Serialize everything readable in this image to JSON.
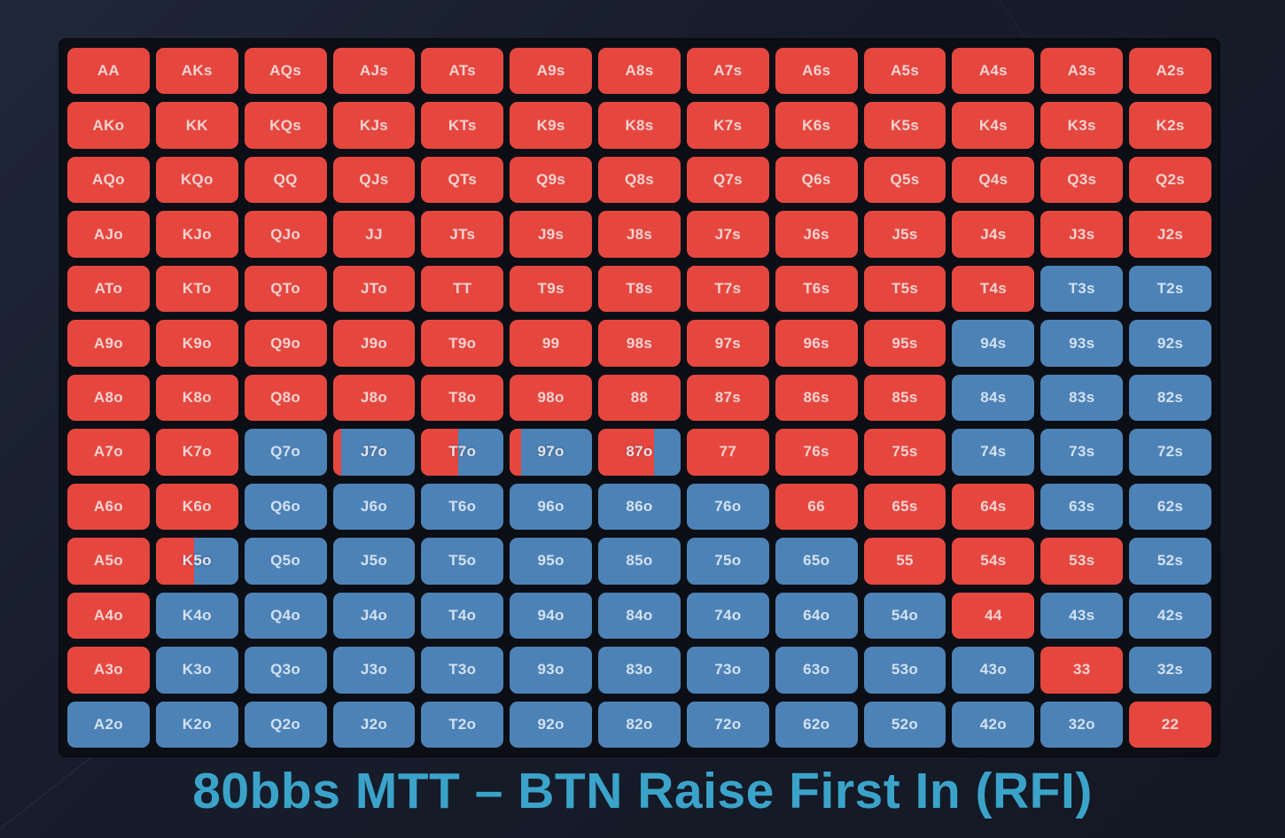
{
  "page": {
    "background": "#161c2a",
    "board_background": "#0b0e15",
    "title_color": "#3ba3c9"
  },
  "chart_data": {
    "type": "heatmap",
    "title": "80bbs MTT – BTN Raise First In (RFI)",
    "description_of_values": "13x13 poker starting-hand matrix; each cell is [hand, red_percent] where red_percent is the portion of the cell filled red from the left (100 = fully red, 0 = fully blue)",
    "cell_format": [
      "hand",
      "red_percent"
    ],
    "cell_colors": {
      "red": "#e5473f",
      "blue": "#4d82b6"
    },
    "legend_position": "none",
    "grid": [
      [
        [
          "AA",
          100
        ],
        [
          "AKs",
          100
        ],
        [
          "AQs",
          100
        ],
        [
          "AJs",
          100
        ],
        [
          "ATs",
          100
        ],
        [
          "A9s",
          100
        ],
        [
          "A8s",
          100
        ],
        [
          "A7s",
          100
        ],
        [
          "A6s",
          100
        ],
        [
          "A5s",
          100
        ],
        [
          "A4s",
          100
        ],
        [
          "A3s",
          100
        ],
        [
          "A2s",
          100
        ]
      ],
      [
        [
          "AKo",
          100
        ],
        [
          "KK",
          100
        ],
        [
          "KQs",
          100
        ],
        [
          "KJs",
          100
        ],
        [
          "KTs",
          100
        ],
        [
          "K9s",
          100
        ],
        [
          "K8s",
          100
        ],
        [
          "K7s",
          100
        ],
        [
          "K6s",
          100
        ],
        [
          "K5s",
          100
        ],
        [
          "K4s",
          100
        ],
        [
          "K3s",
          100
        ],
        [
          "K2s",
          100
        ]
      ],
      [
        [
          "AQo",
          100
        ],
        [
          "KQo",
          100
        ],
        [
          "QQ",
          100
        ],
        [
          "QJs",
          100
        ],
        [
          "QTs",
          100
        ],
        [
          "Q9s",
          100
        ],
        [
          "Q8s",
          100
        ],
        [
          "Q7s",
          100
        ],
        [
          "Q6s",
          100
        ],
        [
          "Q5s",
          100
        ],
        [
          "Q4s",
          100
        ],
        [
          "Q3s",
          100
        ],
        [
          "Q2s",
          100
        ]
      ],
      [
        [
          "AJo",
          100
        ],
        [
          "KJo",
          100
        ],
        [
          "QJo",
          100
        ],
        [
          "JJ",
          100
        ],
        [
          "JTs",
          100
        ],
        [
          "J9s",
          100
        ],
        [
          "J8s",
          100
        ],
        [
          "J7s",
          100
        ],
        [
          "J6s",
          100
        ],
        [
          "J5s",
          100
        ],
        [
          "J4s",
          100
        ],
        [
          "J3s",
          100
        ],
        [
          "J2s",
          100
        ]
      ],
      [
        [
          "ATo",
          100
        ],
        [
          "KTo",
          100
        ],
        [
          "QTo",
          100
        ],
        [
          "JTo",
          100
        ],
        [
          "TT",
          100
        ],
        [
          "T9s",
          100
        ],
        [
          "T8s",
          100
        ],
        [
          "T7s",
          100
        ],
        [
          "T6s",
          100
        ],
        [
          "T5s",
          100
        ],
        [
          "T4s",
          100
        ],
        [
          "T3s",
          0
        ],
        [
          "T2s",
          0
        ]
      ],
      [
        [
          "A9o",
          100
        ],
        [
          "K9o",
          100
        ],
        [
          "Q9o",
          100
        ],
        [
          "J9o",
          100
        ],
        [
          "T9o",
          100
        ],
        [
          "99",
          100
        ],
        [
          "98s",
          100
        ],
        [
          "97s",
          100
        ],
        [
          "96s",
          100
        ],
        [
          "95s",
          100
        ],
        [
          "94s",
          0
        ],
        [
          "93s",
          0
        ],
        [
          "92s",
          0
        ]
      ],
      [
        [
          "A8o",
          100
        ],
        [
          "K8o",
          100
        ],
        [
          "Q8o",
          100
        ],
        [
          "J8o",
          100
        ],
        [
          "T8o",
          100
        ],
        [
          "98o",
          100
        ],
        [
          "88",
          100
        ],
        [
          "87s",
          100
        ],
        [
          "86s",
          100
        ],
        [
          "85s",
          100
        ],
        [
          "84s",
          0
        ],
        [
          "83s",
          0
        ],
        [
          "82s",
          0
        ]
      ],
      [
        [
          "A7o",
          100
        ],
        [
          "K7o",
          100
        ],
        [
          "Q7o",
          0
        ],
        [
          "J7o",
          10
        ],
        [
          "T7o",
          45
        ],
        [
          "97o",
          14
        ],
        [
          "87o",
          68
        ],
        [
          "77",
          100
        ],
        [
          "76s",
          100
        ],
        [
          "75s",
          100
        ],
        [
          "74s",
          0
        ],
        [
          "73s",
          0
        ],
        [
          "72s",
          0
        ]
      ],
      [
        [
          "A6o",
          100
        ],
        [
          "K6o",
          100
        ],
        [
          "Q6o",
          0
        ],
        [
          "J6o",
          0
        ],
        [
          "T6o",
          0
        ],
        [
          "96o",
          0
        ],
        [
          "86o",
          0
        ],
        [
          "76o",
          0
        ],
        [
          "66",
          100
        ],
        [
          "65s",
          100
        ],
        [
          "64s",
          100
        ],
        [
          "63s",
          0
        ],
        [
          "62s",
          0
        ]
      ],
      [
        [
          "A5o",
          100
        ],
        [
          "K5o",
          46
        ],
        [
          "Q5o",
          0
        ],
        [
          "J5o",
          0
        ],
        [
          "T5o",
          0
        ],
        [
          "95o",
          0
        ],
        [
          "85o",
          0
        ],
        [
          "75o",
          0
        ],
        [
          "65o",
          0
        ],
        [
          "55",
          100
        ],
        [
          "54s",
          100
        ],
        [
          "53s",
          100
        ],
        [
          "52s",
          0
        ]
      ],
      [
        [
          "A4o",
          100
        ],
        [
          "K4o",
          0
        ],
        [
          "Q4o",
          0
        ],
        [
          "J4o",
          0
        ],
        [
          "T4o",
          0
        ],
        [
          "94o",
          0
        ],
        [
          "84o",
          0
        ],
        [
          "74o",
          0
        ],
        [
          "64o",
          0
        ],
        [
          "54o",
          0
        ],
        [
          "44",
          100
        ],
        [
          "43s",
          0
        ],
        [
          "42s",
          0
        ]
      ],
      [
        [
          "A3o",
          100
        ],
        [
          "K3o",
          0
        ],
        [
          "Q3o",
          0
        ],
        [
          "J3o",
          0
        ],
        [
          "T3o",
          0
        ],
        [
          "93o",
          0
        ],
        [
          "83o",
          0
        ],
        [
          "73o",
          0
        ],
        [
          "63o",
          0
        ],
        [
          "53o",
          0
        ],
        [
          "43o",
          0
        ],
        [
          "33",
          100
        ],
        [
          "32s",
          0
        ]
      ],
      [
        [
          "A2o",
          0
        ],
        [
          "K2o",
          0
        ],
        [
          "Q2o",
          0
        ],
        [
          "J2o",
          0
        ],
        [
          "T2o",
          0
        ],
        [
          "92o",
          0
        ],
        [
          "82o",
          0
        ],
        [
          "72o",
          0
        ],
        [
          "62o",
          0
        ],
        [
          "52o",
          0
        ],
        [
          "42o",
          0
        ],
        [
          "32o",
          0
        ],
        [
          "22",
          100
        ]
      ]
    ]
  }
}
